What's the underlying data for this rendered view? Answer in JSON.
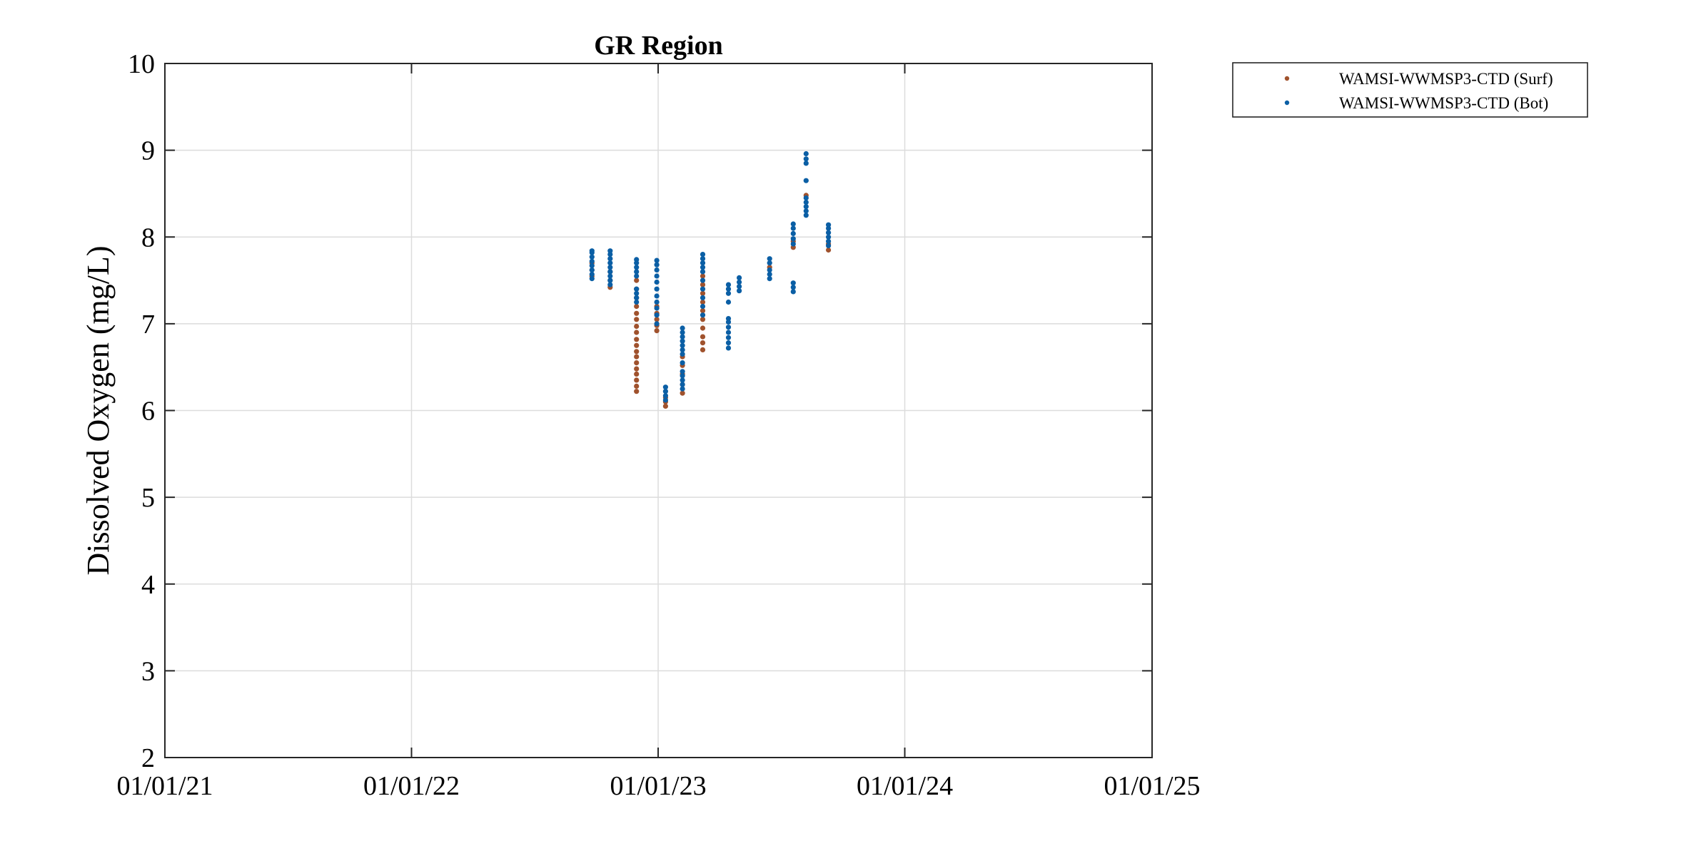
{
  "chart_data": {
    "type": "scatter",
    "title": "GR Region",
    "xlabel": "",
    "ylabel": "Dissolved Oxygen (mg/L)",
    "x_axis_type": "date",
    "xlim": [
      "2021-01-01",
      "2025-01-01"
    ],
    "ylim": [
      2,
      10
    ],
    "x_ticks": [
      "2021-01-01",
      "2022-01-01",
      "2023-01-01",
      "2024-01-01",
      "2025-01-01"
    ],
    "x_tick_labels": [
      "01/01/21",
      "01/01/22",
      "01/01/23",
      "01/01/24",
      "01/01/25"
    ],
    "y_ticks": [
      2,
      3,
      4,
      5,
      6,
      7,
      8,
      9,
      10
    ],
    "y_tick_labels": [
      "2",
      "3",
      "4",
      "5",
      "6",
      "7",
      "8",
      "9",
      "10"
    ],
    "grid": true,
    "legend_position": "outside top-right",
    "series": [
      {
        "name": "WAMSI-WWMSP3-CTD (Surf)",
        "color": "#a0522d",
        "points": [
          [
            "2022-09-25",
            7.55
          ],
          [
            "2022-09-25",
            7.62
          ],
          [
            "2022-09-25",
            7.7
          ],
          [
            "2022-10-22",
            7.42
          ],
          [
            "2022-10-22",
            7.5
          ],
          [
            "2022-10-22",
            7.6
          ],
          [
            "2022-11-30",
            6.22
          ],
          [
            "2022-11-30",
            6.28
          ],
          [
            "2022-11-30",
            6.35
          ],
          [
            "2022-11-30",
            6.42
          ],
          [
            "2022-11-30",
            6.48
          ],
          [
            "2022-11-30",
            6.55
          ],
          [
            "2022-11-30",
            6.62
          ],
          [
            "2022-11-30",
            6.68
          ],
          [
            "2022-11-30",
            6.75
          ],
          [
            "2022-11-30",
            6.82
          ],
          [
            "2022-11-30",
            6.9
          ],
          [
            "2022-11-30",
            6.97
          ],
          [
            "2022-11-30",
            7.05
          ],
          [
            "2022-11-30",
            7.12
          ],
          [
            "2022-11-30",
            7.2
          ],
          [
            "2022-11-30",
            7.3
          ],
          [
            "2022-11-30",
            7.4
          ],
          [
            "2022-11-30",
            7.5
          ],
          [
            "2022-12-30",
            6.92
          ],
          [
            "2022-12-30",
            6.98
          ],
          [
            "2022-12-30",
            7.05
          ],
          [
            "2022-12-30",
            7.12
          ],
          [
            "2022-12-30",
            7.2
          ],
          [
            "2023-01-12",
            6.05
          ],
          [
            "2023-01-12",
            6.1
          ],
          [
            "2023-01-12",
            6.15
          ],
          [
            "2023-02-06",
            6.2
          ],
          [
            "2023-02-06",
            6.3
          ],
          [
            "2023-02-06",
            6.42
          ],
          [
            "2023-02-06",
            6.52
          ],
          [
            "2023-02-06",
            6.62
          ],
          [
            "2023-03-08",
            6.7
          ],
          [
            "2023-03-08",
            6.78
          ],
          [
            "2023-03-08",
            6.85
          ],
          [
            "2023-03-08",
            6.95
          ],
          [
            "2023-03-08",
            7.05
          ],
          [
            "2023-03-08",
            7.15
          ],
          [
            "2023-03-08",
            7.25
          ],
          [
            "2023-03-08",
            7.35
          ],
          [
            "2023-03-08",
            7.45
          ],
          [
            "2023-03-08",
            7.55
          ],
          [
            "2023-06-15",
            7.65
          ],
          [
            "2023-07-20",
            7.88
          ],
          [
            "2023-07-20",
            7.95
          ],
          [
            "2023-08-08",
            8.48
          ],
          [
            "2023-09-10",
            7.85
          ],
          [
            "2023-09-10",
            7.92
          ]
        ]
      },
      {
        "name": "WAMSI-WWMSP3-CTD (Bot)",
        "color": "#0b5fa5",
        "points": [
          [
            "2022-09-25",
            7.52
          ],
          [
            "2022-09-25",
            7.57
          ],
          [
            "2022-09-25",
            7.62
          ],
          [
            "2022-09-25",
            7.67
          ],
          [
            "2022-09-25",
            7.72
          ],
          [
            "2022-09-25",
            7.77
          ],
          [
            "2022-09-25",
            7.82
          ],
          [
            "2022-09-25",
            7.84
          ],
          [
            "2022-10-22",
            7.45
          ],
          [
            "2022-10-22",
            7.5
          ],
          [
            "2022-10-22",
            7.55
          ],
          [
            "2022-10-22",
            7.6
          ],
          [
            "2022-10-22",
            7.65
          ],
          [
            "2022-10-22",
            7.7
          ],
          [
            "2022-10-22",
            7.75
          ],
          [
            "2022-10-22",
            7.8
          ],
          [
            "2022-10-22",
            7.84
          ],
          [
            "2022-11-30",
            7.25
          ],
          [
            "2022-11-30",
            7.3
          ],
          [
            "2022-11-30",
            7.35
          ],
          [
            "2022-11-30",
            7.4
          ],
          [
            "2022-11-30",
            7.55
          ],
          [
            "2022-11-30",
            7.6
          ],
          [
            "2022-11-30",
            7.65
          ],
          [
            "2022-11-30",
            7.7
          ],
          [
            "2022-11-30",
            7.74
          ],
          [
            "2022-12-30",
            7.0
          ],
          [
            "2022-12-30",
            7.1
          ],
          [
            "2022-12-30",
            7.18
          ],
          [
            "2022-12-30",
            7.25
          ],
          [
            "2022-12-30",
            7.32
          ],
          [
            "2022-12-30",
            7.4
          ],
          [
            "2022-12-30",
            7.48
          ],
          [
            "2022-12-30",
            7.55
          ],
          [
            "2022-12-30",
            7.62
          ],
          [
            "2022-12-30",
            7.68
          ],
          [
            "2022-12-30",
            7.73
          ],
          [
            "2023-01-12",
            6.12
          ],
          [
            "2023-01-12",
            6.17
          ],
          [
            "2023-01-12",
            6.22
          ],
          [
            "2023-01-12",
            6.27
          ],
          [
            "2023-02-06",
            6.25
          ],
          [
            "2023-02-06",
            6.3
          ],
          [
            "2023-02-06",
            6.35
          ],
          [
            "2023-02-06",
            6.4
          ],
          [
            "2023-02-06",
            6.45
          ],
          [
            "2023-02-06",
            6.55
          ],
          [
            "2023-02-06",
            6.65
          ],
          [
            "2023-02-06",
            6.7
          ],
          [
            "2023-02-06",
            6.75
          ],
          [
            "2023-02-06",
            6.8
          ],
          [
            "2023-02-06",
            6.85
          ],
          [
            "2023-02-06",
            6.9
          ],
          [
            "2023-02-06",
            6.95
          ],
          [
            "2023-03-08",
            7.1
          ],
          [
            "2023-03-08",
            7.2
          ],
          [
            "2023-03-08",
            7.3
          ],
          [
            "2023-03-08",
            7.4
          ],
          [
            "2023-03-08",
            7.5
          ],
          [
            "2023-03-08",
            7.6
          ],
          [
            "2023-03-08",
            7.65
          ],
          [
            "2023-03-08",
            7.7
          ],
          [
            "2023-03-08",
            7.75
          ],
          [
            "2023-03-08",
            7.8
          ],
          [
            "2023-04-15",
            6.72
          ],
          [
            "2023-04-15",
            6.78
          ],
          [
            "2023-04-15",
            6.84
          ],
          [
            "2023-04-15",
            6.9
          ],
          [
            "2023-04-15",
            6.96
          ],
          [
            "2023-04-15",
            7.02
          ],
          [
            "2023-04-15",
            7.06
          ],
          [
            "2023-04-15",
            7.25
          ],
          [
            "2023-04-15",
            7.35
          ],
          [
            "2023-04-15",
            7.4
          ],
          [
            "2023-04-15",
            7.45
          ],
          [
            "2023-05-01",
            7.38
          ],
          [
            "2023-05-01",
            7.43
          ],
          [
            "2023-05-01",
            7.48
          ],
          [
            "2023-05-01",
            7.53
          ],
          [
            "2023-06-15",
            7.52
          ],
          [
            "2023-06-15",
            7.57
          ],
          [
            "2023-06-15",
            7.62
          ],
          [
            "2023-06-15",
            7.7
          ],
          [
            "2023-06-15",
            7.75
          ],
          [
            "2023-07-20",
            7.37
          ],
          [
            "2023-07-20",
            7.42
          ],
          [
            "2023-07-20",
            7.47
          ],
          [
            "2023-07-20",
            7.92
          ],
          [
            "2023-07-20",
            7.98
          ],
          [
            "2023-07-20",
            8.04
          ],
          [
            "2023-07-20",
            8.1
          ],
          [
            "2023-07-20",
            8.15
          ],
          [
            "2023-08-08",
            8.25
          ],
          [
            "2023-08-08",
            8.3
          ],
          [
            "2023-08-08",
            8.35
          ],
          [
            "2023-08-08",
            8.4
          ],
          [
            "2023-08-08",
            8.45
          ],
          [
            "2023-08-08",
            8.65
          ],
          [
            "2023-08-08",
            8.85
          ],
          [
            "2023-08-08",
            8.9
          ],
          [
            "2023-08-08",
            8.96
          ],
          [
            "2023-09-10",
            7.9
          ],
          [
            "2023-09-10",
            7.95
          ],
          [
            "2023-09-10",
            8.0
          ],
          [
            "2023-09-10",
            8.05
          ],
          [
            "2023-09-10",
            8.1
          ],
          [
            "2023-09-10",
            8.14
          ]
        ]
      }
    ]
  }
}
